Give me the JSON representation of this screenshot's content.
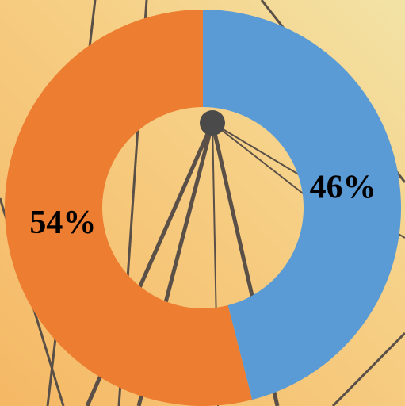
{
  "chart_data": {
    "type": "donut",
    "values": [
      46,
      54
    ],
    "value_labels": [
      "46%",
      "54%"
    ],
    "colors": [
      "#5b9bd5",
      "#ed7d31"
    ]
  }
}
